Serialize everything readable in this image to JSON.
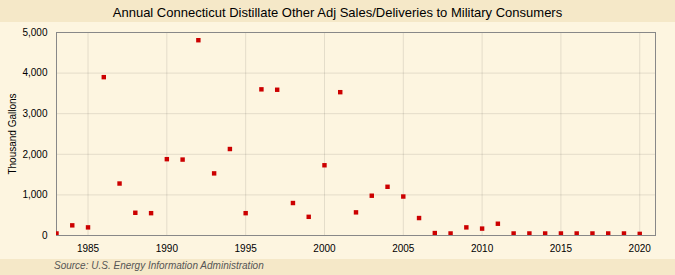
{
  "chart_data": {
    "type": "scatter",
    "title": "Annual Connecticut Distillate Other Adj Sales/Deliveries to Military Consumers",
    "ylabel": "Thousand Gallons",
    "source": "Source: U.S. Energy Information Administration",
    "x": [
      1983,
      1984,
      1985,
      1986,
      1987,
      1988,
      1989,
      1990,
      1991,
      1992,
      1993,
      1994,
      1995,
      1996,
      1997,
      1998,
      1999,
      2000,
      2001,
      2002,
      2003,
      2004,
      2005,
      2006,
      2007,
      2008,
      2009,
      2010,
      2011,
      2012,
      2013,
      2014,
      2015,
      2016,
      2017,
      2018,
      2019,
      2020
    ],
    "values": [
      50,
      250,
      200,
      3900,
      1280,
      560,
      550,
      1880,
      1870,
      4810,
      1530,
      2130,
      550,
      3600,
      3590,
      800,
      460,
      1730,
      3530,
      570,
      980,
      1200,
      960,
      430,
      60,
      50,
      200,
      170,
      290,
      50,
      50,
      50,
      50,
      50,
      50,
      50,
      50,
      40
    ],
    "color": "#cc0000",
    "marker": "square",
    "xlim": [
      1983,
      2021
    ],
    "xticks": [
      1985,
      1990,
      1995,
      2000,
      2005,
      2010,
      2015,
      2020
    ],
    "ylim": [
      0,
      5000
    ],
    "yticks": [
      0,
      {
        "value": 1000,
        "label": "1,000"
      },
      {
        "value": 2000,
        "label": "2,000"
      },
      {
        "value": 3000,
        "label": "3,000"
      },
      {
        "value": 4000,
        "label": "4,000"
      },
      {
        "value": 5000,
        "label": "5,000"
      }
    ],
    "grid": true
  }
}
